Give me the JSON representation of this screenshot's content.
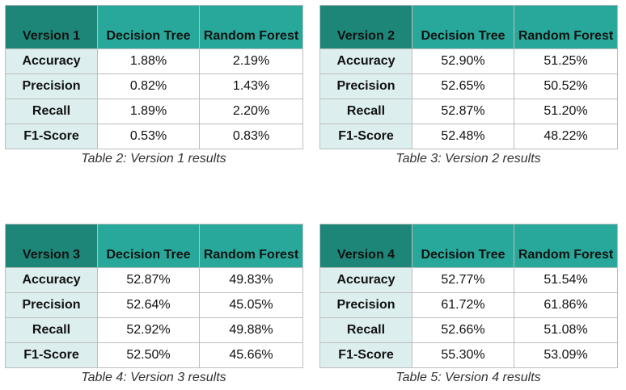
{
  "tables": [
    {
      "version_label": "Version 1",
      "col_dt": "Decision Tree",
      "col_rf": "Random Forest",
      "rows": [
        {
          "metric": "Accuracy",
          "dt": "1.88%",
          "rf": "2.19%"
        },
        {
          "metric": "Precision",
          "dt": "0.82%",
          "rf": "1.43%"
        },
        {
          "metric": "Recall",
          "dt": "1.89%",
          "rf": "2.20%"
        },
        {
          "metric": "F1-Score",
          "dt": "0.53%",
          "rf": "0.83%"
        }
      ],
      "caption": "Table 2: Version 1 results"
    },
    {
      "version_label": "Version 2",
      "col_dt": "Decision Tree",
      "col_rf": "Random Forest",
      "rows": [
        {
          "metric": "Accuracy",
          "dt": "52.90%",
          "rf": "51.25%"
        },
        {
          "metric": "Precision",
          "dt": "52.65%",
          "rf": "50.52%"
        },
        {
          "metric": "Recall",
          "dt": "52.87%",
          "rf": "51.20%"
        },
        {
          "metric": "F1-Score",
          "dt": "52.48%",
          "rf": "48.22%"
        }
      ],
      "caption": "Table 3: Version 2 results"
    },
    {
      "version_label": "Version 3",
      "col_dt": "Decision Tree",
      "col_rf": "Random Forest",
      "rows": [
        {
          "metric": "Accuracy",
          "dt": "52.87%",
          "rf": "49.83%"
        },
        {
          "metric": "Precision",
          "dt": "52.64%",
          "rf": "45.05%"
        },
        {
          "metric": "Recall",
          "dt": "52.92%",
          "rf": "49.88%"
        },
        {
          "metric": "F1-Score",
          "dt": "52.50%",
          "rf": "45.66%"
        }
      ],
      "caption": "Table 4: Version 3 results"
    },
    {
      "version_label": "Version 4",
      "col_dt": "Decision Tree",
      "col_rf": "Random Forest",
      "rows": [
        {
          "metric": "Accuracy",
          "dt": "52.77%",
          "rf": "51.54%"
        },
        {
          "metric": "Precision",
          "dt": "61.72%",
          "rf": "61.86%"
        },
        {
          "metric": "Recall",
          "dt": "52.66%",
          "rf": "51.08%"
        },
        {
          "metric": "F1-Score",
          "dt": "55.30%",
          "rf": "53.09%"
        }
      ],
      "caption": "Table 5: Version 4 results"
    }
  ],
  "colors": {
    "header_fill": "#28a89a",
    "corner_fill": "#1d8678",
    "metric_fill": "#dcefee",
    "border": "#bdbdbd"
  }
}
